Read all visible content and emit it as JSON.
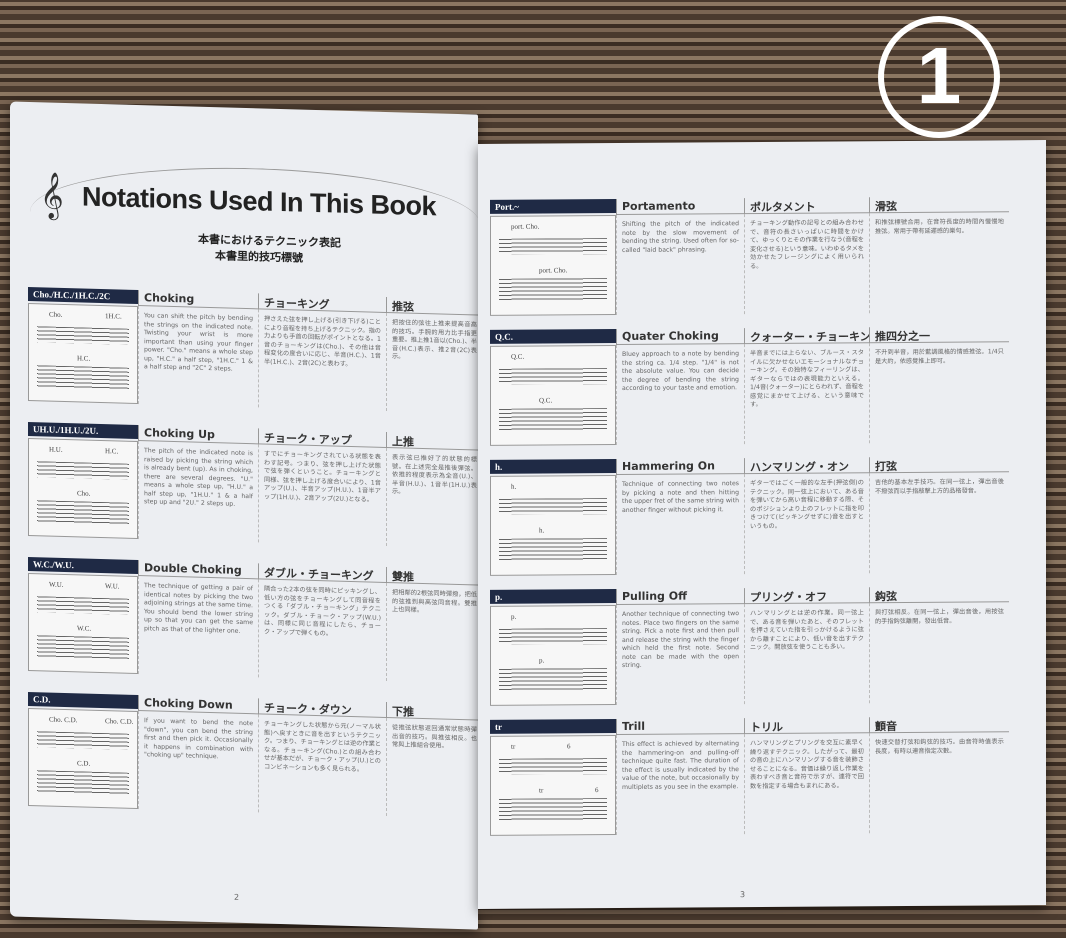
{
  "badge": "1",
  "left_page": {
    "title": "Notations Used In This Book",
    "subtitle_jp": "本書におけるテクニック表記",
    "subtitle_cn": "本書里的技巧標號",
    "page_number": "2",
    "sections": [
      {
        "tag": "Cho./H.C./1H.C./2C",
        "en": "Choking",
        "jp": "チョーキング",
        "cn": "推弦",
        "marks": [
          "Cho.",
          "H.C.",
          "1H.C."
        ],
        "en_body": "You can shift the pitch by bending the strings on the indicated note. Twisting your wrist is more important than using your finger power. \"Cho.\" means a whole step up, \"H.C.\" a half step, \"1H.C.\" 1 & a half step and \"2C\" 2 steps.",
        "jp_body": "押さえた弦を押し上げる(引き下げる)ことにより音程を持ち上げるテクニック。指の力よりも手首の回転がポイントとなる。1音のチョーキングは(Cho.)、その他は音程変化の度合いに応じ、半音(H.C.)、1音半(1H.C.)、2音(2C)と表わす。",
        "cn_body": "把按住的弦往上推来提高音高的技巧。手腕的用力比手指更重要。推上推1音以(Cho.)、半音(H.C.)表示、推2音(2C)表示。"
      },
      {
        "tag": "UH.U./1H.U./2U.",
        "en": "Choking Up",
        "jp": "チョーク・アップ",
        "cn": "上推",
        "marks": [
          "H.U.",
          "Cho.",
          "H.C."
        ],
        "en_body": "The pitch of the indicated note is raised by picking the string which is already bent (up). As in choking, there are several degrees. \"U.\" means a whole step up, \"H.U.\" a half step up, \"1H.U.\" 1 & a half step up and \"2U.\" 2 steps up.",
        "jp_body": "すでにチョーキングされている状態を表わす記号。つまり、弦を押し上げた状態で弦を弾くということ。チョーキングと同様、弦を押し上げる度合いにより、1音アップ(U.)、半音アップ(H.U.)、1音半アップ(1H.U.)、2音アップ(2U.)となる。",
        "cn_body": "表示弦已推好了的狀態的標號。在上述完全是推後彈弦。依推的程度表示為全音(U.)、半音(H.U.)、1音半(1H.U.)表示。"
      },
      {
        "tag": "W.C./W.U.",
        "en": "Double Choking",
        "jp": "ダブル・チョーキング",
        "cn": "雙推",
        "marks": [
          "W.U.",
          "W.C.",
          "W.U."
        ],
        "en_body": "The technique of getting a pair of identical notes by picking the two adjoining strings at the same time. You should bend the lower string up so that you can get the same pitch as that of the lighter one.",
        "jp_body": "隣合った2本の弦を同時にピッキングし、低い方の弦をチョーキングして同音程をつくる「ダブル・チョーキング」テクニック。ダブル・チョーク・アップ(W.U.)は、同様に同じ音程にしたら、チョーク・アップで弾くもの。",
        "cn_body": "把相鄰的2根弦同時彈撥，把低的弦推到與高弦同音程。雙推上也同樣。"
      },
      {
        "tag": "C.D.",
        "en": "Choking Down",
        "jp": "チョーク・ダウン",
        "cn": "下推",
        "marks": [
          "Cho. C.D.",
          "C.D.",
          "Cho. C.D."
        ],
        "en_body": "If you want to bend the note \"down\", you can bend the string first and then pick it. Occasionally it happens in combination with \"choking up\" technique.",
        "jp_body": "チョーキングした状態から元(ノーマル状態)へ戻すときに音を出すというテクニック。つまり、チョーキングとは逆の作業となる。チョーキング(Cho.)との組み合わせが基本だが、チョーク・アップ(U.)とのコンビネーションも多く見られる。",
        "cn_body": "從推弦狀態返回通常狀態時彈出音的技巧。與推弦相反。也常與上推組合使用。"
      }
    ]
  },
  "right_page": {
    "page_number": "3",
    "sections": [
      {
        "tag": "Port.~",
        "en": "Portamento",
        "jp": "ポルタメント",
        "cn": "滑弦",
        "marks": [
          "port. Cho.",
          "port. Cho."
        ],
        "en_body": "Shifting the pitch of the indicated note by the slow movement of bending the string. Used often for so-called \"laid back\" phrasing.",
        "jp_body": "チョーキング動作の記号との組み合わせで、音符の長さいっぱいに時間をかけて、ゆっくりとその作業を行なう(音程を変化させる)という意味。いわゆるタメを効かせたフレージングによく用いられる。",
        "cn_body": "和推弦標號合用，在音符長度的時間內慢慢地推弦。常用于帶有延遲感的樂句。"
      },
      {
        "tag": "Q.C.",
        "en": "Quater Choking",
        "jp": "クォーター・チョーキング",
        "cn": "推四分之一",
        "marks": [
          "Q.C.",
          "Q.C."
        ],
        "en_body": "Bluey approach to a note by bending the string ca. 1/4 step. \"1/4\" is not the absolute value. You can decide the degree of bending the string according to your taste and emotion.",
        "jp_body": "半音までには上らない、ブルース・スタイルに欠かせないエモーショナルなチョーキング。その独特なフィーリングは、ギターならではの表現能力といえる。1/4音(クォーター)にとらわれず、音程を感覚にまかせて上げる、という意味です。",
        "cn_body": "不升到半音，用於藍調風格的情感推弦。1/4只是大約，依感覺推上即可。"
      },
      {
        "tag": "h.",
        "en": "Hammering On",
        "jp": "ハンマリング・オン",
        "cn": "打弦",
        "marks": [
          "h.",
          "h."
        ],
        "en_body": "Technique of connecting two notes by picking a note and then hitting the upper fret of the same string with another finger without picking it.",
        "jp_body": "ギターではごく一般的な左手(押弦側)のテクニック。同一弦上において、ある音を弾いてから高い音程に移動する際、そのポジションより上のフレットに指を叩きつけて(ピッキングせずに)音を出すというもの。",
        "cn_body": "吉他的基本左手技巧。在同一弦上，彈出音後不撥弦而以手指敲擊上方的品格發音。"
      },
      {
        "tag": "p.",
        "en": "Pulling Off",
        "jp": "プリング・オフ",
        "cn": "鈎弦",
        "marks": [
          "p.",
          "p."
        ],
        "en_body": "Another technique of connecting two notes. Place two fingers on the same string. Pick a note first and then pull and release the string with the finger which held the first note. Second note can be made with the open string.",
        "jp_body": "ハンマリングとは逆の作業。同一弦上で、ある音を弾いたあと、そのフレットを押さえていた指を引っかけるように弦から離すことにより、低い音を出すテクニック。開放弦を使うことも多い。",
        "cn_body": "與打弦相反。在同一弦上，彈出音後，用按弦的手指鈎弦離開，發出低音。"
      },
      {
        "tag": "tr",
        "en": "Trill",
        "jp": "トリル",
        "cn": "顫音",
        "marks": [
          "tr",
          "tr",
          "6",
          "6"
        ],
        "en_body": "This effect is achieved by alternating the hammering-on and pulling-off technique quite fast. The duration of the effect is usually indicated by the value of the note, but occasionally by multiplets as you see in the example.",
        "jp_body": "ハンマリングとプリングを交互に素早く繰り返すテクニック。したがって、最初の音の上にハンマリングする音を装飾させることになる。音価は繰り返し作業を表わすべき音と音符で示すが、連符で回数を指定する場合もまれにある。",
        "cn_body": "快速交替打弦和鈎弦的技巧。由音符時值表示長度，有時以連音指定次數。"
      }
    ]
  }
}
